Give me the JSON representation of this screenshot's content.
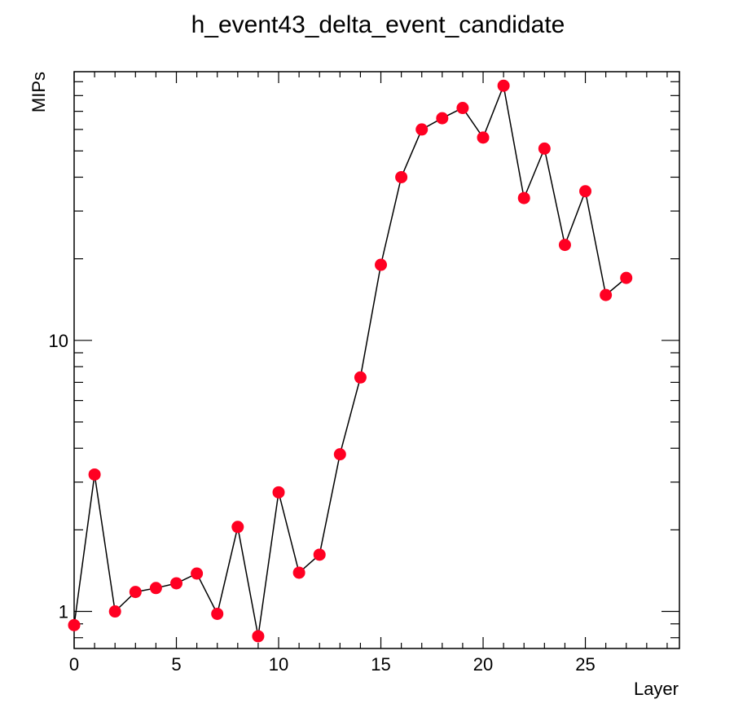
{
  "chart_data": {
    "type": "scatter",
    "title": "h_event43_delta_event_candidate",
    "xlabel": "Layer",
    "ylabel": "MIPs",
    "xlim": [
      0,
      29.6
    ],
    "ylim": [
      0.73,
      98
    ],
    "yscale": "log",
    "x_ticks": [
      0,
      5,
      10,
      15,
      20,
      25
    ],
    "y_ticks": [
      1,
      10
    ],
    "grid": false,
    "legend": "none",
    "marker_color": "#ff0022",
    "line_color": "#000000",
    "x": [
      0,
      1,
      2,
      3,
      4,
      5,
      6,
      7,
      8,
      9,
      10,
      11,
      12,
      13,
      14,
      15,
      16,
      17,
      18,
      19,
      20,
      21,
      22,
      23,
      24,
      25,
      26,
      27
    ],
    "y": [
      0.89,
      3.2,
      1.0,
      1.18,
      1.22,
      1.27,
      1.38,
      0.98,
      2.05,
      0.81,
      2.75,
      1.39,
      1.62,
      3.8,
      7.3,
      19.0,
      40.0,
      60.0,
      66.0,
      72.0,
      56.0,
      87.0,
      33.5,
      51.0,
      22.5,
      35.5,
      14.7,
      17.0
    ]
  }
}
